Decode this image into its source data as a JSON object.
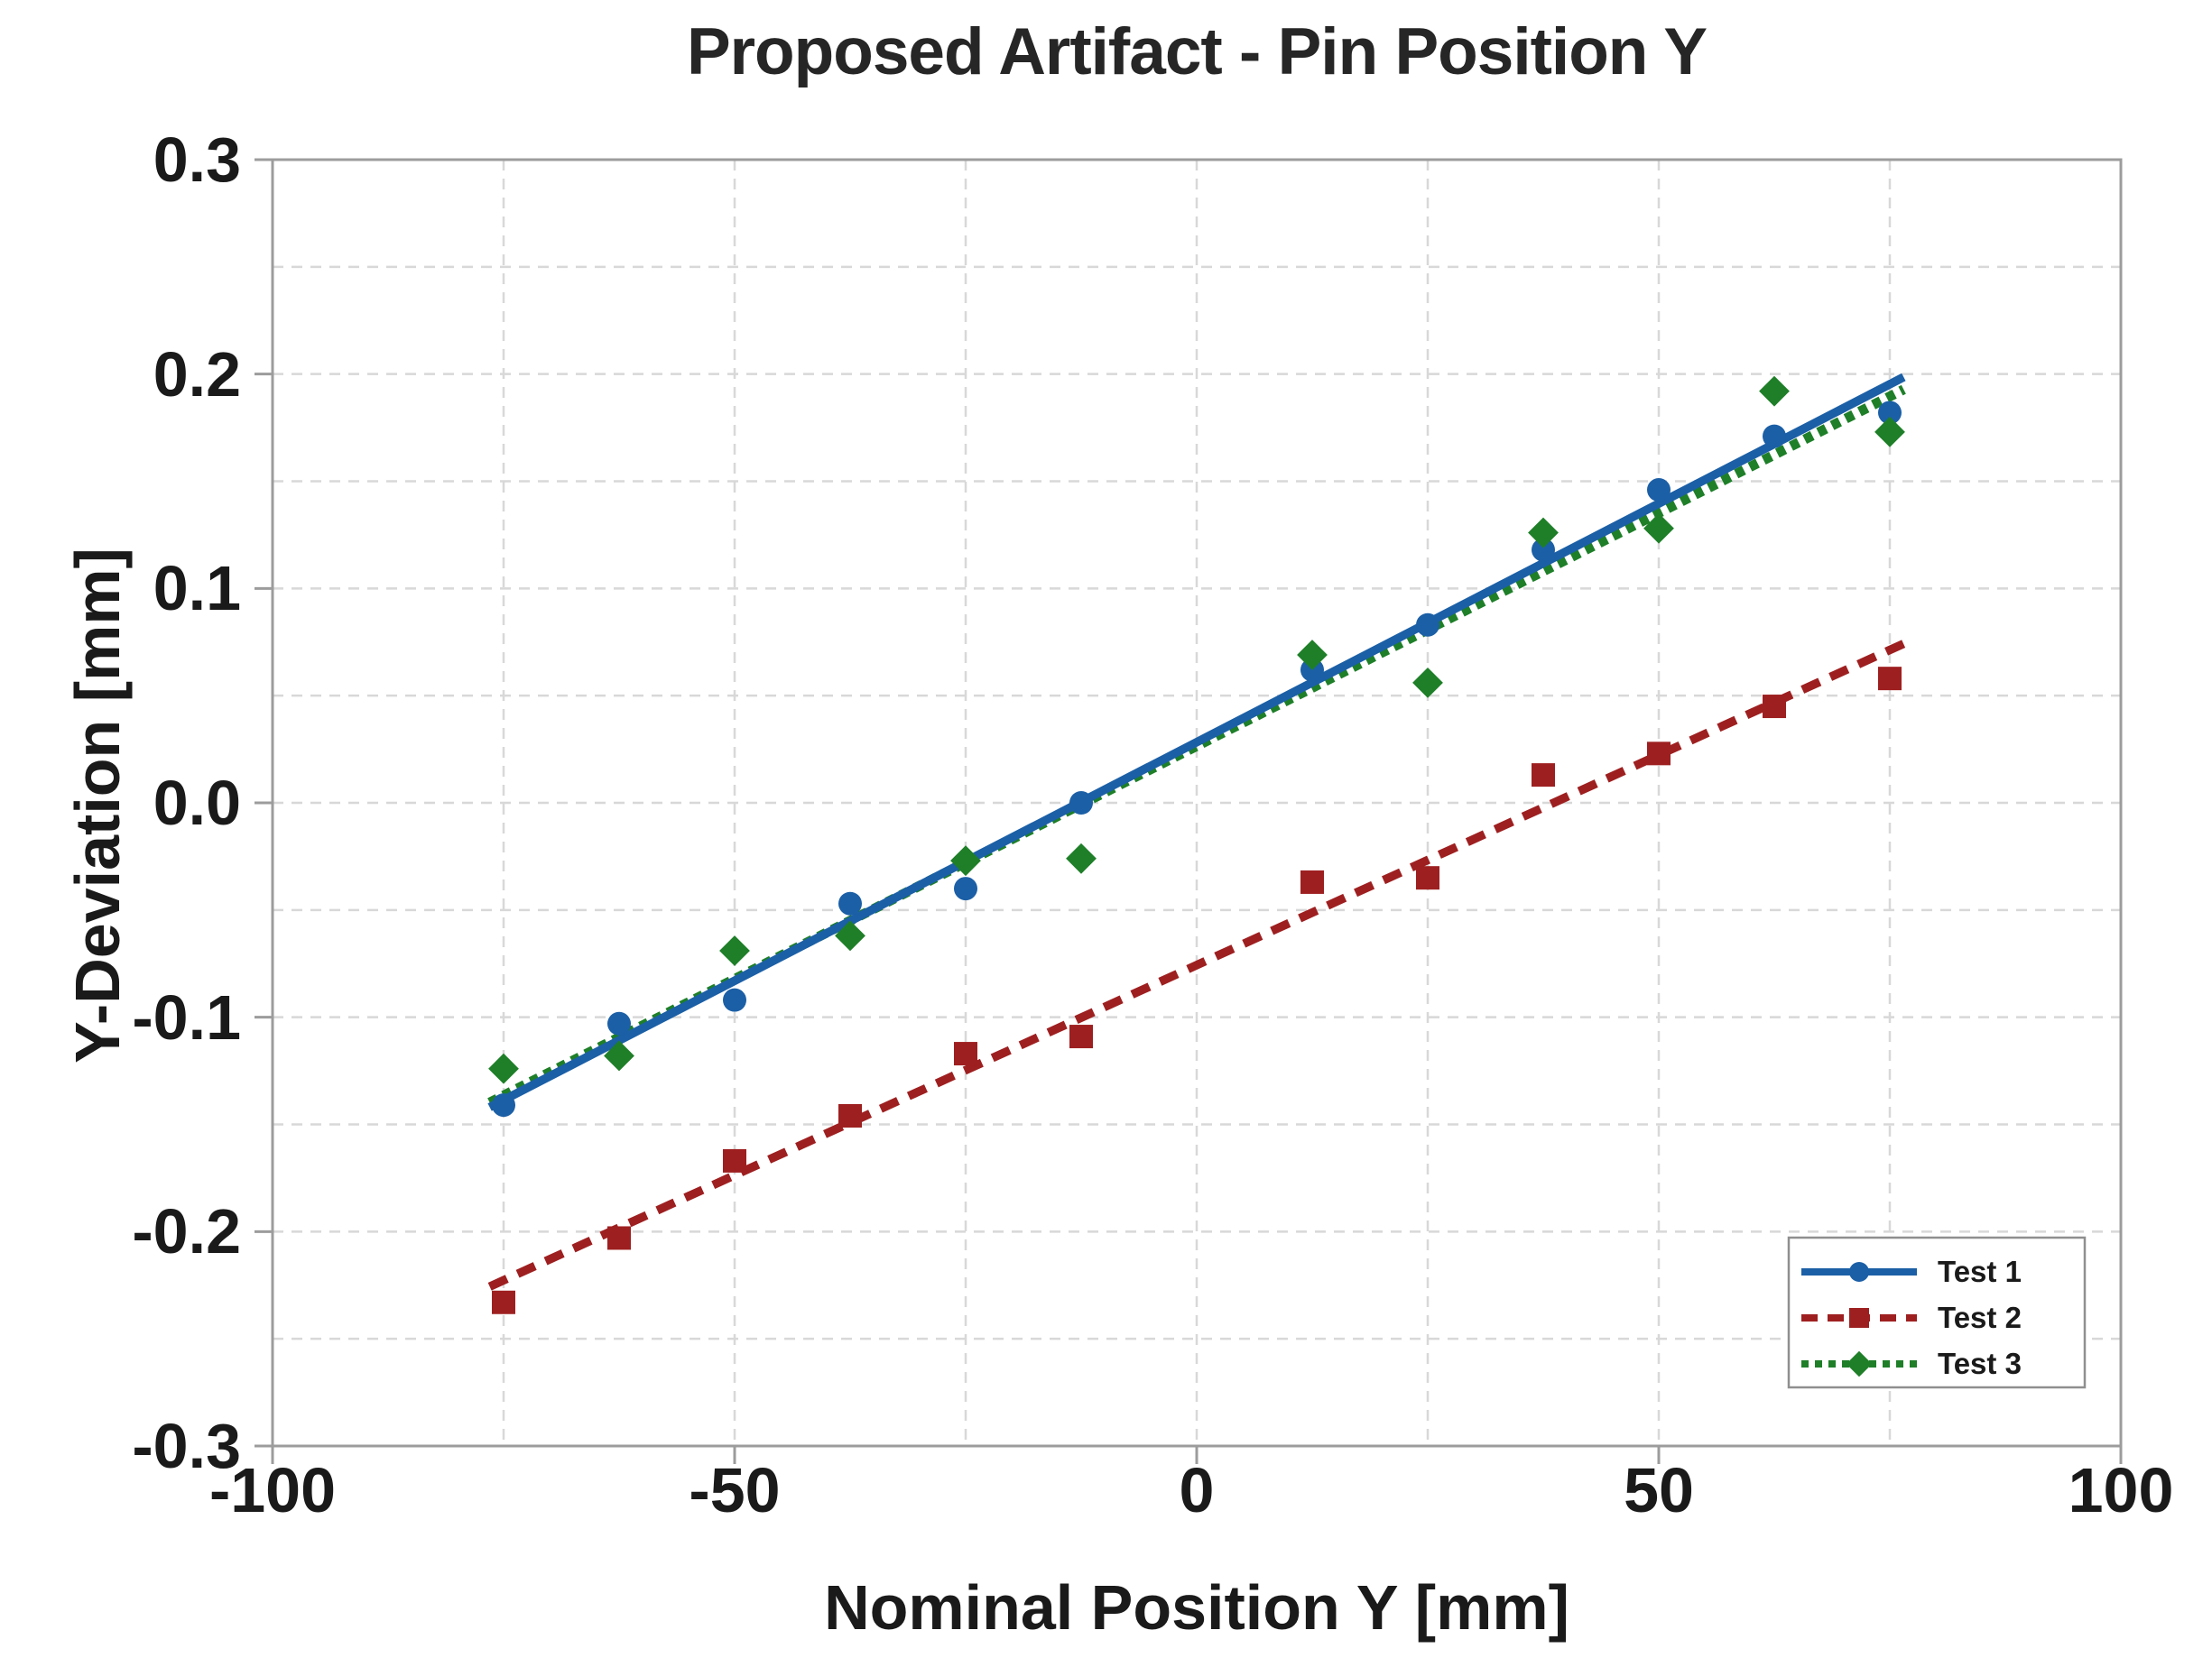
{
  "page_title": "Proposed Artifact - Pin Position Y",
  "chart_data": {
    "type": "scatter",
    "title": "Proposed Artifact - Pin Position Y",
    "xlabel": "Nominal Position Y [mm]",
    "ylabel": "Y-Deviation [mm]",
    "xlim": [
      -100,
      100
    ],
    "ylim": [
      -0.3,
      0.3
    ],
    "grid": true,
    "legend_position": "lower right",
    "x_ticks": [
      -100,
      -50,
      0,
      50,
      100
    ],
    "x_tick_labels": [
      "-100",
      "-50",
      "0",
      "50",
      "100"
    ],
    "y_ticks": [
      0.3,
      0.2,
      0.1,
      0.0,
      -0.1,
      -0.2,
      -0.3
    ],
    "y_tick_labels": [
      "0.3",
      "0.2",
      "0.1",
      "0.0",
      "-0.1",
      "-0.2",
      "-0.3"
    ],
    "x_gridlines": [
      -75,
      -50,
      -25,
      0,
      25,
      50,
      75
    ],
    "y_gridlines": [
      -0.25,
      -0.2,
      -0.15,
      -0.1,
      -0.05,
      0,
      0.05,
      0.1,
      0.15,
      0.2,
      0.25
    ],
    "x": [
      -75,
      -62.5,
      -50,
      -37.5,
      -25,
      -12.5,
      12.5,
      25,
      37.5,
      50,
      62.5,
      75
    ],
    "trend_x_range": [
      -76.5,
      76.5
    ],
    "series": [
      {
        "name": "Test 1",
        "marker": "circle",
        "line_style": "solid",
        "color": "#1b5fa6",
        "values": [
          -0.141,
          -0.103,
          -0.092,
          -0.047,
          -0.04,
          0.0,
          0.062,
          0.083,
          0.118,
          0.146,
          0.171,
          0.182
        ],
        "trend": {
          "slope": 0.002226,
          "intercept": 0.0283
        }
      },
      {
        "name": "Test 2",
        "marker": "square",
        "line_style": "dashed",
        "color": "#9e1f20",
        "values": [
          -0.233,
          -0.203,
          -0.167,
          -0.146,
          -0.117,
          -0.109,
          -0.037,
          -0.035,
          0.013,
          0.023,
          0.045,
          0.058
        ],
        "trend": {
          "slope": 0.00196,
          "intercept": -0.0757
        }
      },
      {
        "name": "Test 3",
        "marker": "diamond",
        "line_style": "dotted",
        "color": "#1e7f28",
        "values": [
          -0.124,
          -0.118,
          -0.069,
          -0.062,
          -0.027,
          -0.026,
          0.069,
          0.056,
          0.126,
          0.128,
          0.192,
          0.173
        ],
        "trend": {
          "slope": 0.002174,
          "intercept": 0.0265
        }
      }
    ],
    "style": {
      "axis_color": "#9c9c9c",
      "gridline_color": "#d8d8d8",
      "text_color": "#1a1a1a",
      "legend_border_color": "#8f8f8f",
      "background_color": "#ffffff"
    }
  }
}
